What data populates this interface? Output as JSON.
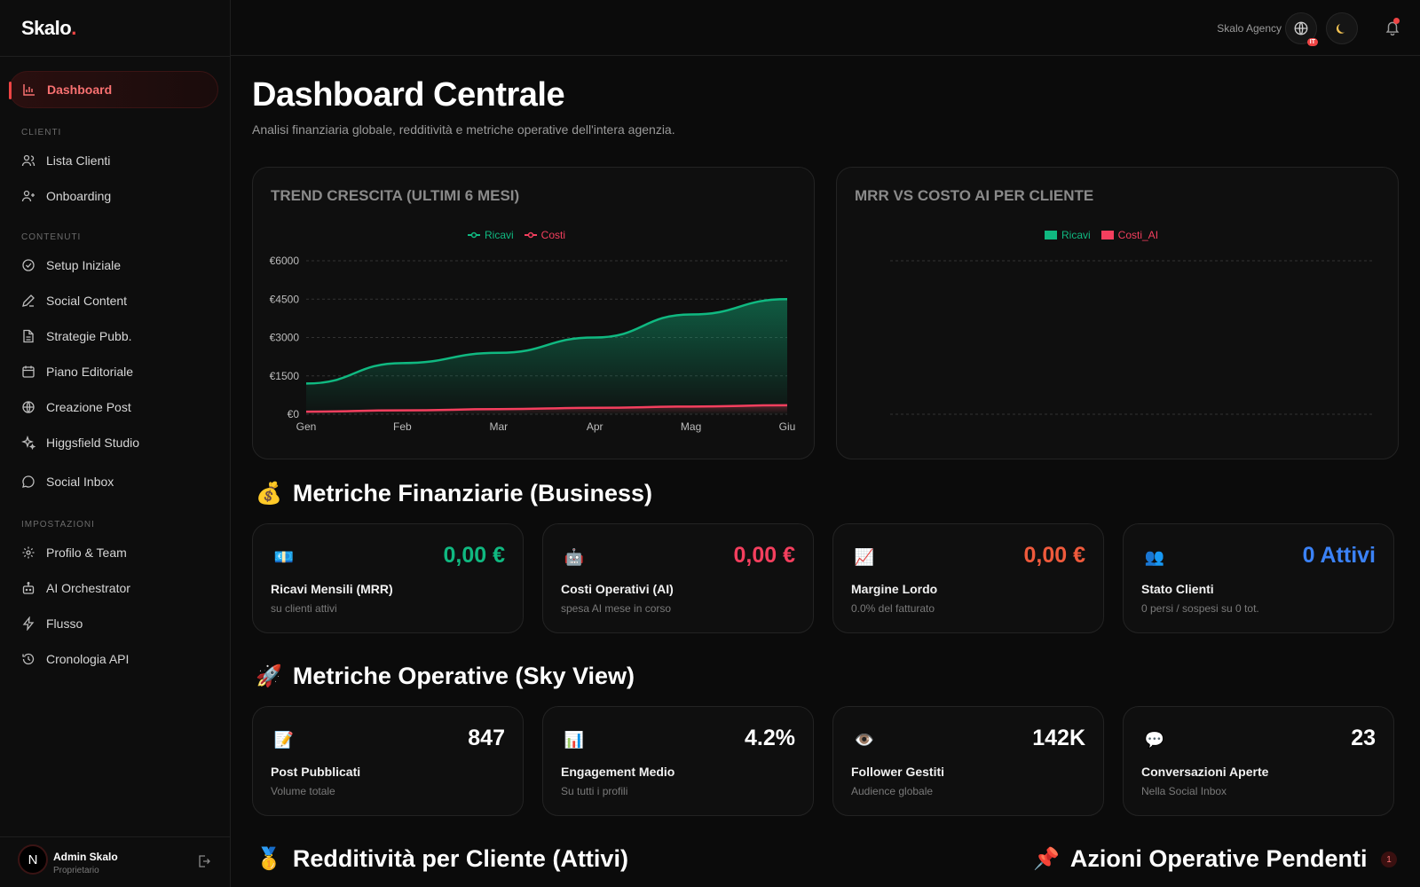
{
  "logo": {
    "text": "Skalo",
    "dot": "."
  },
  "sidebar": {
    "active": {
      "label": "Dashboard"
    },
    "sections": [
      {
        "label": "CLIENTI",
        "items": [
          {
            "label": "Lista Clienti",
            "icon": "users-icon"
          },
          {
            "label": "Onboarding",
            "icon": "user-plus-icon"
          }
        ]
      },
      {
        "label": "CONTENUTI",
        "items": [
          {
            "label": "Setup Iniziale",
            "icon": "check-circle-icon"
          },
          {
            "label": "Social Content",
            "icon": "pen-icon"
          },
          {
            "label": "Strategie Pubb.",
            "icon": "document-icon"
          },
          {
            "label": "Piano Editoriale",
            "icon": "calendar-icon"
          },
          {
            "label": "Creazione Post",
            "icon": "globe-icon"
          },
          {
            "label": "Higgsfield Studio",
            "icon": "sparkles-icon"
          },
          {
            "label": "Social Inbox",
            "icon": "chat-bubble-icon"
          }
        ]
      },
      {
        "label": "IMPOSTAZIONI",
        "items": [
          {
            "label": "Profilo & Team",
            "icon": "gear-icon"
          },
          {
            "label": "AI Orchestrator",
            "icon": "robot-icon"
          },
          {
            "label": "Flusso",
            "icon": "lightning-icon"
          },
          {
            "label": "Cronologia API",
            "icon": "history-icon"
          }
        ]
      }
    ],
    "user": {
      "initial": "N",
      "name": "Admin Skalo",
      "role": "Proprietario"
    }
  },
  "topbar": {
    "agency": "Skalo Agency",
    "lang_badge": "IT"
  },
  "page": {
    "title": "Dashboard Centrale",
    "subtitle": "Analisi finanziaria globale, redditività e metriche operative dell'intera agenzia."
  },
  "colors": {
    "accent": "#ef4444",
    "green": "#10b981",
    "red": "#f43f5e",
    "blue": "#3b82f6"
  },
  "chart_data": [
    {
      "type": "area",
      "title": "TREND CRESCITA (ULTIMI 6 MESI)",
      "categories": [
        "Gen",
        "Feb",
        "Mar",
        "Apr",
        "Mag",
        "Giu"
      ],
      "y_ticks": [
        "€0",
        "€1500",
        "€3000",
        "€4500",
        "€6000"
      ],
      "ylim": [
        0,
        6000
      ],
      "grid": true,
      "legend_position": "top-center",
      "series": [
        {
          "name": "Ricavi",
          "color": "#10b981",
          "values": [
            1200,
            2000,
            2400,
            3000,
            3900,
            4500
          ]
        },
        {
          "name": "Costi",
          "color": "#f43f5e",
          "values": [
            100,
            150,
            200,
            250,
            300,
            350
          ]
        }
      ]
    },
    {
      "type": "bar",
      "title": "MRR VS COSTO AI PER CLIENTE",
      "categories": [],
      "grid": true,
      "legend_position": "top-center",
      "series": [
        {
          "name": "Ricavi",
          "color": "#10b981",
          "values": []
        },
        {
          "name": "Costi_AI",
          "color": "#f43f5e",
          "values": []
        }
      ]
    }
  ],
  "finance": {
    "title": "Metriche Finanziarie (Business)",
    "emoji": "💰",
    "cards": [
      {
        "icon": "💶",
        "value": "0,00 €",
        "color": "#10b981",
        "label": "Ricavi Mensili (MRR)",
        "sub": "su clienti attivi"
      },
      {
        "icon": "🤖",
        "value": "0,00 €",
        "color": "#f43f5e",
        "label": "Costi Operativi (AI)",
        "sub": "spesa AI mese in corso"
      },
      {
        "icon": "📈",
        "value": "0,00 €",
        "color": "#ef5a3c",
        "label": "Margine Lordo",
        "sub": "0.0% del fatturato"
      },
      {
        "icon": "👥",
        "value": "0 Attivi",
        "color": "#3b82f6",
        "label": "Stato Clienti",
        "sub": "0 persi / sospesi su 0 tot."
      }
    ]
  },
  "operative": {
    "title": "Metriche Operative (Sky View)",
    "emoji": "🚀",
    "cards": [
      {
        "icon": "📝",
        "value": "847",
        "color": "#ffffff",
        "label": "Post Pubblicati",
        "sub": "Volume totale"
      },
      {
        "icon": "📊",
        "value": "4.2%",
        "color": "#ffffff",
        "label": "Engagement Medio",
        "sub": "Su tutti i profili"
      },
      {
        "icon": "👁️",
        "value": "142K",
        "color": "#ffffff",
        "label": "Follower Gestiti",
        "sub": "Audience globale"
      },
      {
        "icon": "💬",
        "value": "23",
        "color": "#ffffff",
        "label": "Conversazioni Aperte",
        "sub": "Nella Social Inbox"
      }
    ]
  },
  "bottom": {
    "left_title": "Redditività per Cliente (Attivi)",
    "left_emoji": "🥇",
    "right_title": "Azioni Operative Pendenti",
    "right_emoji": "📌",
    "right_count": "1"
  }
}
